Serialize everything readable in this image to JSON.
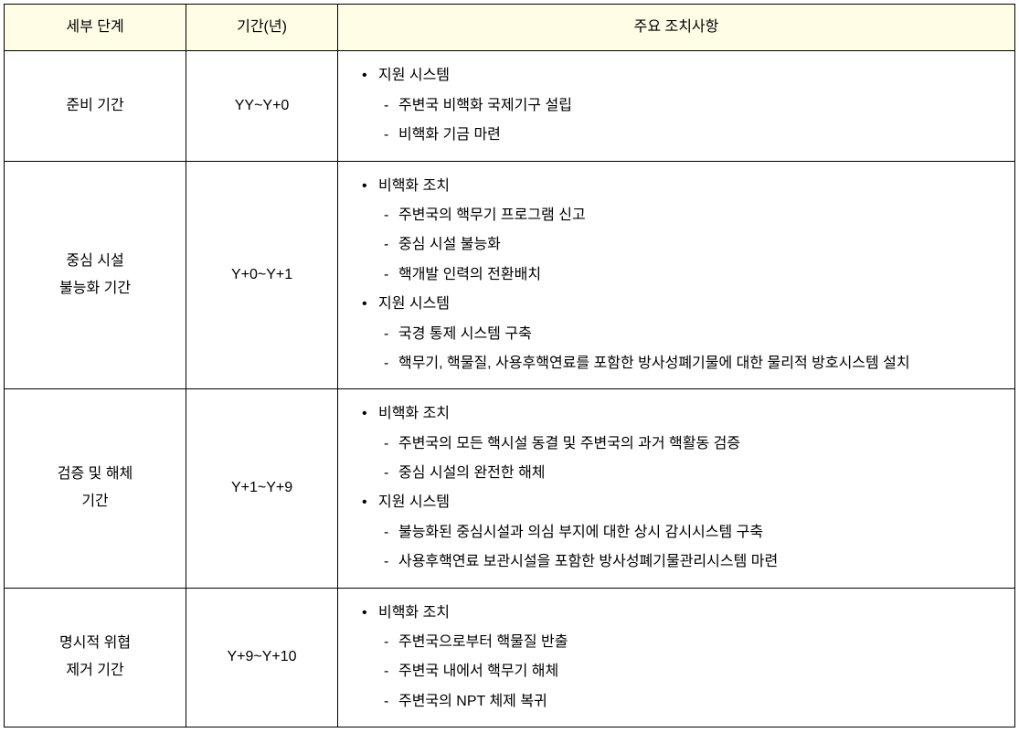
{
  "table": {
    "headers": {
      "stage": "세부 단계",
      "period": "기간(년)",
      "action": "주요 조치사항"
    },
    "rows": [
      {
        "stage": "준비 기간",
        "period": "YY~Y+0",
        "sections": [
          {
            "title": "지원 시스템",
            "items": [
              "주변국 비핵화 국제기구 설립",
              "비핵화 기금 마련"
            ]
          }
        ]
      },
      {
        "stage": "중심 시설\n불능화 기간",
        "period": "Y+0~Y+1",
        "sections": [
          {
            "title": "비핵화 조치",
            "items": [
              "주변국의 핵무기 프로그램 신고",
              "중심 시설 불능화",
              "핵개발 인력의 전환배치"
            ]
          },
          {
            "title": "지원 시스템",
            "items": [
              "국경 통제 시스템 구축",
              "핵무기, 핵물질, 사용후핵연료를 포함한 방사성폐기물에 대한 물리적 방호시스템 설치"
            ]
          }
        ]
      },
      {
        "stage": "검증 및 해체\n기간",
        "period": "Y+1~Y+9",
        "sections": [
          {
            "title": "비핵화 조치",
            "items": [
              "주변국의 모든 핵시설 동결 및 주변국의 과거 핵활동 검증",
              "중심 시설의 완전한 해체"
            ]
          },
          {
            "title": "지원 시스템",
            "items": [
              "불능화된 중심시설과 의심 부지에 대한 상시 감시시스템 구축",
              "사용후핵연료 보관시설을 포함한 방사성폐기물관리시스템 마련"
            ]
          }
        ]
      },
      {
        "stage": "명시적 위협\n제거 기간",
        "period": "Y+9~Y+10",
        "sections": [
          {
            "title": "비핵화 조치",
            "items": [
              "주변국으로부터 핵물질 반출",
              "주변국 내에서 핵무기 해체",
              "주변국의 NPT 체제 복귀"
            ]
          }
        ]
      }
    ]
  },
  "styling": {
    "header_bg": "#fffde6",
    "border_color": "#000000",
    "font_size": 16,
    "line_height": 1.9,
    "col_widths": [
      "18%",
      "15%",
      "67%"
    ]
  }
}
